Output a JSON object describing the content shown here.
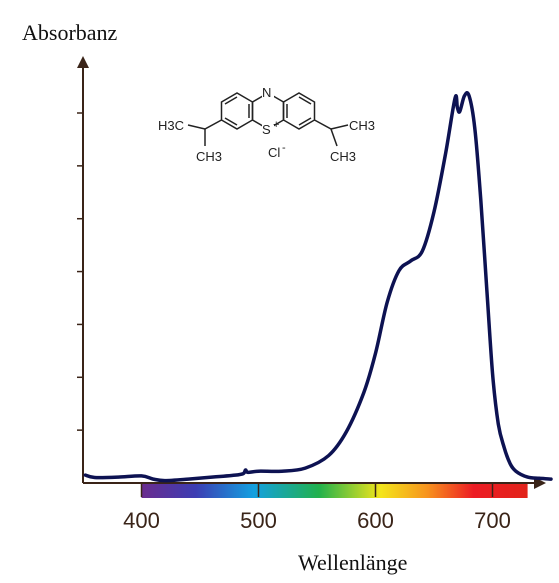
{
  "chart_data": {
    "type": "line",
    "title": "",
    "ylabel": "Absorbanz",
    "xlabel": "Wellenlänge",
    "xlim": [
      350,
      760
    ],
    "ylim": [
      0,
      1.0
    ],
    "x_ticks": [
      "400",
      "500",
      "600",
      "700"
    ],
    "y_tick_count": 7,
    "grid": false,
    "legend": "none",
    "series": [
      {
        "color": "#0d1252",
        "x": [
          352,
          360,
          380,
          400,
          410,
          420,
          440,
          460,
          480,
          487,
          489,
          491,
          500,
          520,
          540,
          560,
          575,
          590,
          600,
          610,
          620,
          630,
          640,
          650,
          660,
          668,
          670,
          672,
          676,
          680,
          685,
          690,
          695,
          700,
          705,
          710,
          715,
          720,
          730,
          740,
          750
        ],
        "y": [
          0.02,
          0.014,
          0.015,
          0.018,
          0.01,
          0.006,
          0.01,
          0.015,
          0.02,
          0.024,
          0.033,
          0.027,
          0.03,
          0.03,
          0.038,
          0.07,
          0.13,
          0.23,
          0.33,
          0.46,
          0.54,
          0.565,
          0.59,
          0.69,
          0.84,
          0.98,
          0.955,
          0.945,
          0.985,
          0.985,
          0.9,
          0.72,
          0.5,
          0.28,
          0.15,
          0.09,
          0.05,
          0.03,
          0.015,
          0.012,
          0.01
        ]
      }
    ],
    "colorbar": {
      "range": [
        400,
        730
      ],
      "stops": [
        "#6a2c8e",
        "#3d3db3",
        "#14a0e0",
        "#22b14c",
        "#f4e51b",
        "#f7931e",
        "#ed1c24",
        "#e2231a"
      ]
    }
  },
  "structure": {
    "atom_n": "N",
    "atom_s": "S",
    "charge_s": "+",
    "left_methyl_top": "H3C",
    "left_methyl_bottom": "CH3",
    "right_methyl_top": "CH3",
    "right_methyl_bottom": "CH3",
    "counterion": "Cl",
    "counterion_charge": "-"
  }
}
